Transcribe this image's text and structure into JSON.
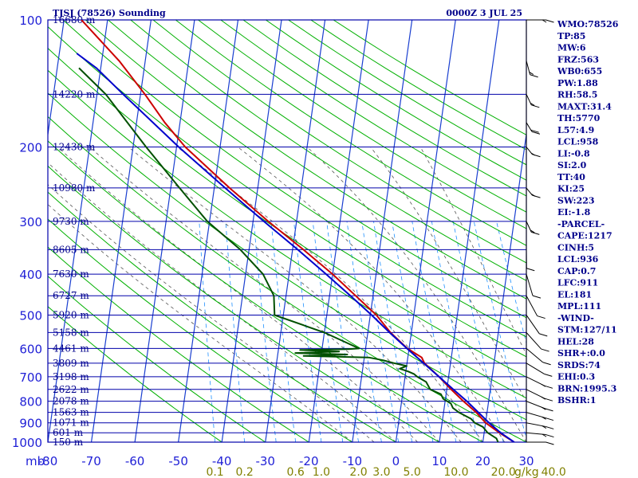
{
  "chart_data": {
    "type": "line",
    "title": "TJSJ (78526) Sounding",
    "valid_time": "0000Z  3 JUL 25",
    "y_axis": {
      "label": "mb",
      "scale": "log",
      "range": [
        1000,
        100
      ],
      "ticks": [
        "100",
        "200",
        "300",
        "400",
        "500",
        "600",
        "700",
        "800",
        "900",
        "1000"
      ]
    },
    "x_axis": {
      "label": "",
      "range": [
        -80,
        30
      ],
      "skew": true,
      "ticks": [
        "-80",
        "-70",
        "-60",
        "-50",
        "-40",
        "-30",
        "-20",
        "-10",
        "0",
        "10",
        "20",
        "30"
      ]
    },
    "mixing_ratio_axis": {
      "label": "g/kg",
      "ticks": [
        "0.1",
        "0.2",
        "0.6",
        "1.0",
        "2.0",
        "3.0",
        "5.0",
        "10.0",
        "20.0",
        "40.0"
      ]
    },
    "height_labels": [
      {
        "p": 1000,
        "label": "150 m"
      },
      {
        "p": 950,
        "label": "601 m"
      },
      {
        "p": 900,
        "label": "1071 m"
      },
      {
        "p": 850,
        "label": "1563 m"
      },
      {
        "p": 800,
        "label": "2078 m"
      },
      {
        "p": 750,
        "label": "2622 m"
      },
      {
        "p": 700,
        "label": "3198 m"
      },
      {
        "p": 650,
        "label": "3809 m"
      },
      {
        "p": 600,
        "label": "4461 m"
      },
      {
        "p": 550,
        "label": "5158 m"
      },
      {
        "p": 500,
        "label": "5920 m"
      },
      {
        "p": 450,
        "label": "6727 m"
      },
      {
        "p": 400,
        "label": "7630 m"
      },
      {
        "p": 350,
        "label": "8605 m"
      },
      {
        "p": 300,
        "label": "9730 m"
      },
      {
        "p": 250,
        "label": "10980 m"
      },
      {
        "p": 200,
        "label": "12430 m"
      },
      {
        "p": 150,
        "label": "14220 m"
      },
      {
        "p": 100,
        "label": "16680 m"
      }
    ],
    "series": [
      {
        "color": "#cc0000",
        "points": [
          [
            1000,
            27.2
          ],
          [
            950,
            23.5
          ],
          [
            900,
            20.0
          ],
          [
            850,
            17.5
          ],
          [
            800,
            14.2
          ],
          [
            750,
            11.0
          ],
          [
            700,
            7.8
          ],
          [
            650,
            4.0
          ],
          [
            630,
            3.2
          ],
          [
            600,
            -0.4
          ],
          [
            550,
            -4.8
          ],
          [
            500,
            -8.6
          ],
          [
            450,
            -14.0
          ],
          [
            400,
            -20.0
          ],
          [
            350,
            -27.5
          ],
          [
            300,
            -36.5
          ],
          [
            250,
            -46.5
          ],
          [
            200,
            -58.0
          ],
          [
            175,
            -63.5
          ],
          [
            150,
            -69.0
          ],
          [
            125,
            -76.0
          ],
          [
            100,
            -86.0
          ]
        ]
      },
      {
        "color": "#0000cc",
        "points": [
          [
            1000,
            27.2
          ],
          [
            950,
            23.8
          ],
          [
            900,
            20.8
          ],
          [
            850,
            18.0
          ],
          [
            800,
            15.0
          ],
          [
            750,
            11.5
          ],
          [
            700,
            7.8
          ],
          [
            650,
            3.8
          ],
          [
            600,
            -0.5
          ],
          [
            550,
            -5.0
          ],
          [
            500,
            -9.7
          ],
          [
            450,
            -15.2
          ],
          [
            400,
            -21.5
          ],
          [
            350,
            -28.8
          ],
          [
            300,
            -37.5
          ],
          [
            250,
            -47.5
          ],
          [
            200,
            -59.5
          ],
          [
            150,
            -74.0
          ],
          [
            130,
            -81.0
          ],
          [
            120,
            -86.0
          ]
        ]
      },
      {
        "color": "#005000",
        "points": [
          [
            1000,
            23.5
          ],
          [
            980,
            23.0
          ],
          [
            950,
            20.8
          ],
          [
            920,
            19.5
          ],
          [
            900,
            17.5
          ],
          [
            880,
            16.5
          ],
          [
            850,
            13.5
          ],
          [
            830,
            12.0
          ],
          [
            810,
            11.4
          ],
          [
            790,
            9.5
          ],
          [
            770,
            8.8
          ],
          [
            750,
            6.2
          ],
          [
            720,
            5.0
          ],
          [
            700,
            2.8
          ],
          [
            690,
            2.0
          ],
          [
            680,
            0.5
          ],
          [
            670,
            -1.5
          ],
          [
            660,
            0.0
          ],
          [
            650,
            -3.0
          ],
          [
            640,
            -5.5
          ],
          [
            630,
            -9.0
          ],
          [
            625,
            -24.0
          ],
          [
            620,
            -14.0
          ],
          [
            615,
            -26.0
          ],
          [
            610,
            -16.0
          ],
          [
            605,
            -25.0
          ],
          [
            602,
            -14.0
          ],
          [
            600,
            -11.5
          ],
          [
            550,
            -20.0
          ],
          [
            500,
            -32.0
          ],
          [
            450,
            -32.8
          ],
          [
            400,
            -36.0
          ],
          [
            350,
            -42.0
          ],
          [
            300,
            -50.5
          ],
          [
            250,
            -58.0
          ],
          [
            200,
            -67.0
          ],
          [
            150,
            -78.0
          ],
          [
            130,
            -85.0
          ]
        ]
      }
    ],
    "wind_barbs": [
      {
        "p": 1000,
        "dir": 90,
        "spd": 10
      },
      {
        "p": 950,
        "dir": 95,
        "spd": 15
      },
      {
        "p": 900,
        "dir": 100,
        "spd": 15
      },
      {
        "p": 850,
        "dir": 105,
        "spd": 15
      },
      {
        "p": 800,
        "dir": 110,
        "spd": 15
      },
      {
        "p": 750,
        "dir": 115,
        "spd": 15
      },
      {
        "p": 700,
        "dir": 115,
        "spd": 15
      },
      {
        "p": 650,
        "dir": 120,
        "spd": 10
      },
      {
        "p": 600,
        "dir": 130,
        "spd": 10
      },
      {
        "p": 550,
        "dir": 140,
        "spd": 10
      },
      {
        "p": 500,
        "dir": 150,
        "spd": 10
      },
      {
        "p": 450,
        "dir": 160,
        "spd": 10
      },
      {
        "p": 400,
        "dir": 180,
        "spd": 10
      },
      {
        "p": 350,
        "dir": 210,
        "spd": 10
      },
      {
        "p": 300,
        "dir": 240,
        "spd": 15
      },
      {
        "p": 250,
        "dir": 250,
        "spd": 15
      },
      {
        "p": 200,
        "dir": 250,
        "spd": 15
      },
      {
        "p": 175,
        "dir": 245,
        "spd": 20
      },
      {
        "p": 150,
        "dir": 240,
        "spd": 15
      },
      {
        "p": 125,
        "dir": 230,
        "spd": 15
      },
      {
        "p": 100,
        "dir": 90,
        "spd": 15
      }
    ],
    "indices": [
      "WMO:78526",
      "TP:85",
      "MW:6",
      "FRZ:563",
      "WB0:655",
      "PW:1.88",
      "RH:58.5",
      "MAXT:31.4",
      "TH:5770",
      "L57:4.9",
      "LCL:958",
      "LI:-0.8",
      "SI:2.0",
      "TT:40",
      "KI:25",
      "SW:223",
      "EI:-1.8",
      "-PARCEL-",
      "CAPE:1217",
      "CINH:5",
      "LCL:936",
      "CAP:0.7",
      "LFC:911",
      "EL:181",
      "MPL:111",
      "-WIND-",
      "STM:127/11",
      "HEL:28",
      "SHR+:0.0",
      "SRDS:74",
      "EHI:0.3",
      "BRN:1995.3",
      "BSHR:1"
    ],
    "colors": {
      "grid": "#0000aa",
      "isotherm": "#1a3fd0",
      "dry_adiabat": "#00b000",
      "moist_adiabat": "#555555",
      "mixing_ratio": "#1e90ff",
      "temperature": "#cc0000",
      "dewpoint": "#005000",
      "parcel": "#0000cc"
    }
  }
}
